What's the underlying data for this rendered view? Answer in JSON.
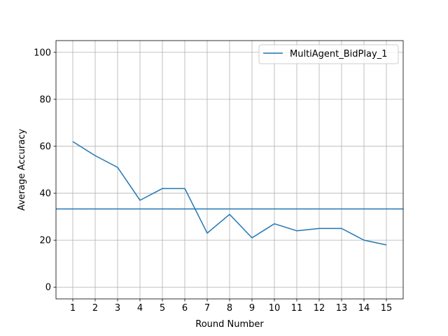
{
  "chart_data": {
    "type": "line",
    "xlabel": "Round Number",
    "ylabel": "Average Accuracy",
    "xlim": [
      0.25,
      15.75
    ],
    "ylim": [
      -5,
      105
    ],
    "x_ticks": [
      1,
      2,
      3,
      4,
      5,
      6,
      7,
      8,
      9,
      10,
      11,
      12,
      13,
      14,
      15
    ],
    "y_ticks": [
      0,
      20,
      40,
      60,
      80,
      100
    ],
    "grid": true,
    "legend_position": "top-right",
    "series": [
      {
        "name": "MultiAgent_BidPlay_1",
        "color": "#1f77b4",
        "x": [
          1,
          2,
          3,
          4,
          5,
          6,
          7,
          8,
          9,
          10,
          11,
          12,
          13,
          14,
          15
        ],
        "y": [
          62,
          56,
          51,
          37,
          42,
          42,
          23,
          31,
          21,
          27,
          24,
          25,
          25,
          20,
          18
        ]
      }
    ],
    "reference_line": {
      "y": 33.3,
      "color": "#1f77b4"
    }
  }
}
